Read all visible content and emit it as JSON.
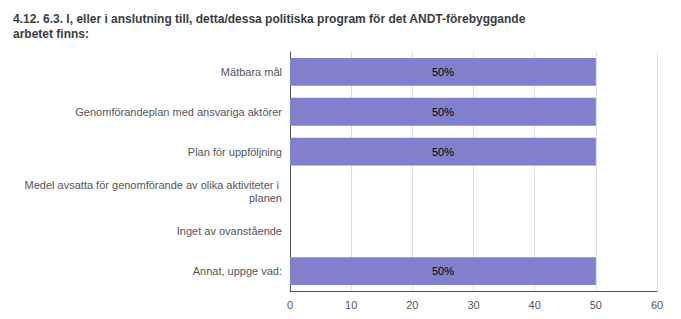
{
  "chart_data": {
    "type": "bar",
    "orientation": "horizontal",
    "title": "4.12. 6.3. I, eller i anslutning till, detta/dessa politiska program för det ANDT-förebyggande arbetet finns:",
    "categories": [
      "Mätbara mål",
      "Genomförandeplan med ansvariga aktörer",
      "Plan för uppföljning",
      "Medel avsatta för genomförande av olika aktiviteter i planen",
      "Inget av ovanstående",
      "Annat, uppge vad:"
    ],
    "values": [
      50,
      50,
      50,
      0,
      0,
      50
    ],
    "value_labels": [
      "50%",
      "50%",
      "50%",
      null,
      null,
      "50%"
    ],
    "data_labels": true,
    "color": "#8080cc",
    "xlim": [
      0,
      60
    ],
    "xticks": [
      0,
      10,
      20,
      30,
      40,
      50,
      60
    ],
    "grid": true
  }
}
